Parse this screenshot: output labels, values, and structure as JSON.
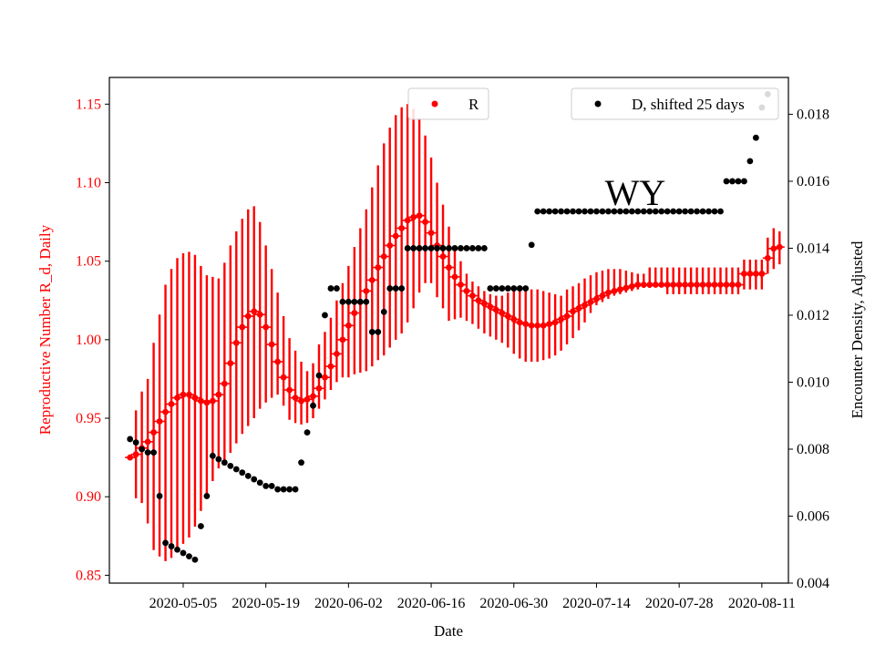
{
  "chart_data": {
    "type": "scatter",
    "xlabel": "Date",
    "ylabel_left": "Reproductive Number R_d, Daily",
    "ylabel_right": "Encounter Density, Adjusted",
    "annotation": "WY",
    "x_ticks": [
      "2020-05-05",
      "2020-05-19",
      "2020-06-02",
      "2020-06-16",
      "2020-06-30",
      "2020-07-14",
      "2020-07-28",
      "2020-08-11"
    ],
    "yticks_left": [
      "0.85",
      "0.90",
      "0.95",
      "1.00",
      "1.05",
      "1.10",
      "1.15"
    ],
    "yticks_right": [
      "0.004",
      "0.006",
      "0.008",
      "0.010",
      "0.012",
      "0.014",
      "0.016",
      "0.018"
    ],
    "ylim_left": [
      0.845,
      1.167
    ],
    "ylim_right": [
      0.004,
      0.0191
    ],
    "x_start_date": "2020-04-26",
    "x_day_range": [
      -3.5,
      111.5
    ],
    "legend": [
      {
        "label": "R",
        "color": "#ff0000"
      },
      {
        "label": "D, shifted 25 days",
        "color": "#000000"
      }
    ],
    "colors": {
      "r": "#ff0000",
      "d": "#000000"
    },
    "series_R": {
      "name": "R",
      "day_start": 0,
      "values": [
        0.925,
        0.927,
        0.931,
        0.935,
        0.941,
        0.948,
        0.954,
        0.959,
        0.963,
        0.965,
        0.965,
        0.963,
        0.961,
        0.96,
        0.961,
        0.965,
        0.972,
        0.985,
        0.998,
        1.008,
        1.015,
        1.018,
        1.016,
        1.008,
        0.997,
        0.986,
        0.976,
        0.968,
        0.963,
        0.961,
        0.962,
        0.964,
        0.969,
        0.976,
        0.983,
        0.991,
        1.0,
        1.009,
        1.017,
        1.024,
        1.031,
        1.038,
        1.046,
        1.053,
        1.06,
        1.066,
        1.071,
        1.076,
        1.078,
        1.079,
        1.075,
        1.068,
        1.06,
        1.053,
        1.046,
        1.04,
        1.035,
        1.031,
        1.028,
        1.025,
        1.023,
        1.021,
        1.019,
        1.017,
        1.015,
        1.013,
        1.011,
        1.01,
        1.009,
        1.009,
        1.009,
        1.01,
        1.011,
        1.013,
        1.015,
        1.018,
        1.02,
        1.022,
        1.024,
        1.026,
        1.028,
        1.03,
        1.031,
        1.032,
        1.033,
        1.034,
        1.035,
        1.035,
        1.035,
        1.035,
        1.035,
        1.035,
        1.035,
        1.035,
        1.035,
        1.035,
        1.035,
        1.035,
        1.035,
        1.035,
        1.035,
        1.035,
        1.035,
        1.035,
        1.042,
        1.042,
        1.042,
        1.042,
        1.052,
        1.058,
        1.059
      ],
      "err_lo": [
        0.924,
        0.899,
        0.896,
        0.883,
        0.866,
        0.862,
        0.859,
        0.861,
        0.865,
        0.87,
        0.874,
        0.881,
        0.891,
        0.9,
        0.91,
        0.918,
        0.922,
        0.928,
        0.934,
        0.94,
        0.945,
        0.95,
        0.956,
        0.96,
        0.963,
        0.965,
        0.958,
        0.949,
        0.947,
        0.946,
        0.947,
        0.95,
        0.956,
        0.962,
        0.968,
        0.973,
        0.976,
        0.976,
        0.978,
        0.979,
        0.98,
        0.983,
        0.987,
        0.99,
        0.995,
        1.0,
        1.004,
        1.011,
        1.02,
        1.03,
        1.036,
        1.036,
        1.027,
        1.02,
        1.012,
        1.013,
        1.014,
        1.012,
        1.01,
        1.007,
        1.004,
        1.002,
        1.0,
        0.998,
        0.995,
        0.991,
        0.988,
        0.986,
        0.986,
        0.986,
        0.987,
        0.988,
        0.99,
        0.993,
        0.997,
        1.001,
        1.006,
        1.011,
        1.017,
        1.022,
        1.024,
        1.026,
        1.028,
        1.029,
        1.03,
        1.031,
        1.032,
        1.033,
        1.033,
        1.034,
        1.034,
        1.029,
        1.029,
        1.029,
        1.029,
        1.029,
        1.029,
        1.029,
        1.029,
        1.029,
        1.029,
        1.029,
        1.029,
        1.029,
        1.032,
        1.032,
        1.032,
        1.032,
        1.042,
        1.045,
        1.048
      ],
      "err_hi": [
        0.926,
        0.955,
        0.967,
        0.975,
        0.998,
        1.016,
        1.035,
        1.045,
        1.052,
        1.055,
        1.056,
        1.054,
        1.047,
        1.041,
        1.04,
        1.039,
        1.049,
        1.06,
        1.069,
        1.077,
        1.083,
        1.085,
        1.075,
        1.06,
        1.045,
        1.03,
        1.015,
        1.001,
        0.993,
        0.986,
        0.98,
        0.985,
        0.997,
        1.005,
        1.014,
        1.025,
        1.036,
        1.047,
        1.059,
        1.071,
        1.083,
        1.097,
        1.111,
        1.125,
        1.135,
        1.143,
        1.148,
        1.15,
        1.147,
        1.141,
        1.13,
        1.116,
        1.1,
        1.086,
        1.072,
        1.06,
        1.05,
        1.042,
        1.037,
        1.034,
        1.031,
        1.029,
        1.028,
        1.028,
        1.03,
        1.031,
        1.032,
        1.032,
        1.032,
        1.032,
        1.031,
        1.03,
        1.029,
        1.028,
        1.032,
        1.034,
        1.036,
        1.039,
        1.041,
        1.043,
        1.044,
        1.045,
        1.045,
        1.045,
        1.044,
        1.043,
        1.042,
        1.042,
        1.046,
        1.046,
        1.046,
        1.046,
        1.046,
        1.046,
        1.046,
        1.046,
        1.046,
        1.046,
        1.046,
        1.046,
        1.046,
        1.046,
        1.046,
        1.046,
        1.051,
        1.051,
        1.051,
        1.051,
        1.065,
        1.071,
        1.069
      ]
    },
    "series_D": {
      "name": "D, shifted 25 days",
      "points": [
        [
          0,
          0.0083
        ],
        [
          1,
          0.0082
        ],
        [
          2,
          0.008
        ],
        [
          3,
          0.0079
        ],
        [
          4,
          0.0079
        ],
        [
          5,
          0.0066
        ],
        [
          6,
          0.0052
        ],
        [
          7,
          0.0051
        ],
        [
          8,
          0.005
        ],
        [
          9,
          0.0049
        ],
        [
          10,
          0.0048
        ],
        [
          11,
          0.0047
        ],
        [
          12,
          0.0057
        ],
        [
          13,
          0.0066
        ],
        [
          14,
          0.0078
        ],
        [
          15,
          0.0077
        ],
        [
          16,
          0.0076
        ],
        [
          17,
          0.0075
        ],
        [
          18,
          0.0074
        ],
        [
          19,
          0.0073
        ],
        [
          20,
          0.0072
        ],
        [
          21,
          0.0071
        ],
        [
          22,
          0.007
        ],
        [
          23,
          0.0069
        ],
        [
          24,
          0.0069
        ],
        [
          25,
          0.0068
        ],
        [
          26,
          0.0068
        ],
        [
          27,
          0.0068
        ],
        [
          28,
          0.0068
        ],
        [
          29,
          0.0076
        ],
        [
          30,
          0.0085
        ],
        [
          31,
          0.0093
        ],
        [
          32,
          0.0102
        ],
        [
          33,
          0.012
        ],
        [
          34,
          0.0128
        ],
        [
          35,
          0.0128
        ],
        [
          36,
          0.0124
        ],
        [
          37,
          0.0124
        ],
        [
          38,
          0.0124
        ],
        [
          39,
          0.0124
        ],
        [
          40,
          0.0124
        ],
        [
          41,
          0.0115
        ],
        [
          42,
          0.0115
        ],
        [
          43,
          0.0121
        ],
        [
          44,
          0.0128
        ],
        [
          45,
          0.0128
        ],
        [
          46,
          0.0128
        ],
        [
          47,
          0.014
        ],
        [
          48,
          0.014
        ],
        [
          49,
          0.014
        ],
        [
          50,
          0.014
        ],
        [
          51,
          0.014
        ],
        [
          52,
          0.014
        ],
        [
          53,
          0.014
        ],
        [
          54,
          0.014
        ],
        [
          55,
          0.014
        ],
        [
          56,
          0.014
        ],
        [
          57,
          0.014
        ],
        [
          58,
          0.014
        ],
        [
          59,
          0.014
        ],
        [
          60,
          0.014
        ],
        [
          61,
          0.0128
        ],
        [
          62,
          0.0128
        ],
        [
          63,
          0.0128
        ],
        [
          64,
          0.0128
        ],
        [
          65,
          0.0128
        ],
        [
          66,
          0.0128
        ],
        [
          67,
          0.0128
        ],
        [
          68,
          0.0141
        ],
        [
          69,
          0.0151
        ],
        [
          70,
          0.0151
        ],
        [
          71,
          0.0151
        ],
        [
          72,
          0.0151
        ],
        [
          73,
          0.0151
        ],
        [
          74,
          0.0151
        ],
        [
          75,
          0.0151
        ],
        [
          76,
          0.0151
        ],
        [
          77,
          0.0151
        ],
        [
          78,
          0.0151
        ],
        [
          79,
          0.0151
        ],
        [
          80,
          0.0151
        ],
        [
          81,
          0.0151
        ],
        [
          82,
          0.0151
        ],
        [
          83,
          0.0151
        ],
        [
          84,
          0.0151
        ],
        [
          85,
          0.0151
        ],
        [
          86,
          0.0151
        ],
        [
          87,
          0.0151
        ],
        [
          88,
          0.0151
        ],
        [
          89,
          0.0151
        ],
        [
          90,
          0.0151
        ],
        [
          91,
          0.0151
        ],
        [
          92,
          0.0151
        ],
        [
          93,
          0.0151
        ],
        [
          94,
          0.0151
        ],
        [
          95,
          0.0151
        ],
        [
          96,
          0.0151
        ],
        [
          97,
          0.0151
        ],
        [
          98,
          0.0151
        ],
        [
          99,
          0.0151
        ],
        [
          100,
          0.0151
        ],
        [
          101,
          0.016
        ],
        [
          102,
          0.016
        ],
        [
          103,
          0.016
        ],
        [
          104,
          0.016
        ],
        [
          105,
          0.0166
        ],
        [
          106,
          0.0173
        ],
        [
          107,
          0.0182
        ],
        [
          108,
          0.0186
        ]
      ]
    }
  }
}
